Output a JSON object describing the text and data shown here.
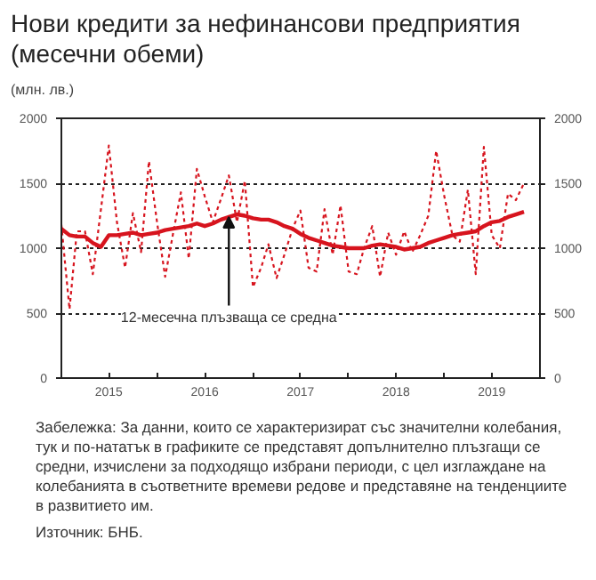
{
  "chart_data": {
    "type": "line",
    "title": "Нови кредити за нефинансови предприятия (месечни обеми)",
    "subtitle": "(млн. лв.)",
    "x": [
      "2015-01",
      "2015-02",
      "2015-03",
      "2015-04",
      "2015-05",
      "2015-06",
      "2015-07",
      "2015-08",
      "2015-09",
      "2015-10",
      "2015-11",
      "2015-12",
      "2016-01",
      "2016-02",
      "2016-03",
      "2016-04",
      "2016-05",
      "2016-06",
      "2016-07",
      "2016-08",
      "2016-09",
      "2016-10",
      "2016-11",
      "2016-12",
      "2017-01",
      "2017-02",
      "2017-03",
      "2017-04",
      "2017-05",
      "2017-06",
      "2017-07",
      "2017-08",
      "2017-09",
      "2017-10",
      "2017-11",
      "2017-12",
      "2018-01",
      "2018-02",
      "2018-03",
      "2018-04",
      "2018-05",
      "2018-06",
      "2018-07",
      "2018-08",
      "2018-09",
      "2018-10",
      "2018-11",
      "2018-12",
      "2019-01",
      "2019-02",
      "2019-03",
      "2019-04",
      "2019-05",
      "2019-06",
      "2019-07",
      "2019-08",
      "2019-09",
      "2019-10",
      "2019-11"
    ],
    "series": [
      {
        "color": "#d7141e",
        "line_style": "dotted",
        "values": [
          1180,
          530,
          1130,
          1130,
          800,
          1300,
          1790,
          1200,
          850,
          1270,
          970,
          1670,
          1200,
          780,
          1100,
          1430,
          920,
          1610,
          1400,
          1200,
          1380,
          1560,
          1200,
          1520,
          700,
          850,
          1030,
          770,
          950,
          1150,
          1290,
          850,
          820,
          1300,
          950,
          1330,
          820,
          800,
          1000,
          1170,
          780,
          1120,
          950,
          1130,
          970,
          1100,
          1250,
          1750,
          1400,
          1100,
          1050,
          1450,
          800,
          1780,
          1100,
          1000,
          1420,
          1370,
          1500
        ]
      },
      {
        "color": "#d7141e",
        "line_style": "solid",
        "values": [
          1150,
          1100,
          1090,
          1090,
          1040,
          1010,
          1100,
          1100,
          1110,
          1120,
          1100,
          1110,
          1120,
          1140,
          1150,
          1160,
          1170,
          1190,
          1170,
          1190,
          1220,
          1240,
          1260,
          1250,
          1230,
          1220,
          1220,
          1200,
          1170,
          1150,
          1110,
          1080,
          1060,
          1040,
          1020,
          1010,
          1000,
          1000,
          1000,
          1020,
          1030,
          1020,
          1010,
          990,
          1000,
          1010,
          1040,
          1060,
          1080,
          1100,
          1110,
          1120,
          1130,
          1170,
          1200,
          1210,
          1240,
          1260,
          1280
        ]
      }
    ],
    "xlim": [
      "2015-01",
      "2020-01"
    ],
    "xticks": [
      {
        "value": "2015-01",
        "label": null
      },
      {
        "value": "2015-07",
        "label": "2015"
      },
      {
        "value": "2016-01",
        "label": null
      },
      {
        "value": "2016-07",
        "label": "2016"
      },
      {
        "value": "2017-01",
        "label": null
      },
      {
        "value": "2017-07",
        "label": "2017"
      },
      {
        "value": "2018-01",
        "label": null
      },
      {
        "value": "2018-07",
        "label": "2018"
      },
      {
        "value": "2019-01",
        "label": null
      },
      {
        "value": "2019-07",
        "label": "2019"
      },
      {
        "value": "2020-01",
        "label": null
      }
    ],
    "ylim": [
      0,
      2000
    ],
    "yticks": [
      0,
      500,
      1000,
      1500,
      2000
    ],
    "y2lim": [
      0,
      2000
    ],
    "y2ticks": [
      0,
      500,
      1000,
      1500,
      2000
    ],
    "grid": "y",
    "annotations": [
      {
        "text": "12-месечна плъзваща се средна",
        "x": "2016-10",
        "y": 1240
      },
      "Забележка: За данни, които се характеризират със значителни колебания, тук и по-нататък в графиките се представят допълнително плъзгащи се средни, изчислени за подходящо избрани периоди, с цел изглаждане на колебанията в съответните времеви редове и представяне на тенденциите в развитието им.",
      "Източник: БНБ."
    ]
  }
}
